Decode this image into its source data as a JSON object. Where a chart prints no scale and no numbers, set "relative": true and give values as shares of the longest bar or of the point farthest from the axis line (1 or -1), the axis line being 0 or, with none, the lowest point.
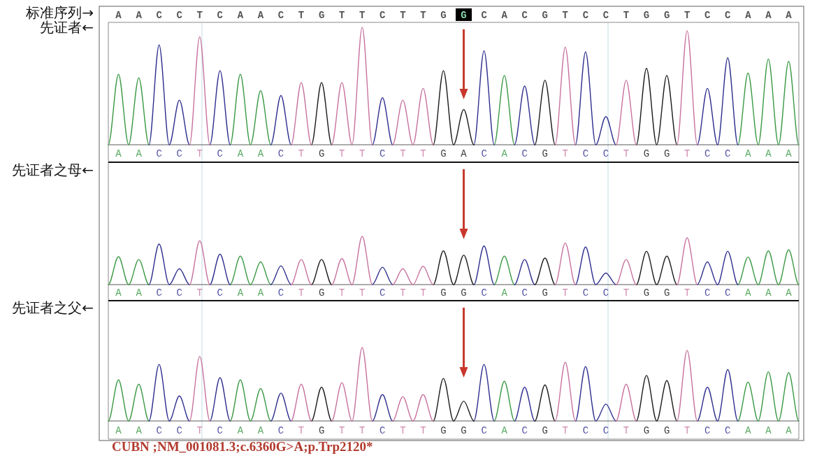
{
  "chart_data": [
    {
      "type": "other",
      "ylabel": "标准序列→",
      "categories": [
        "A",
        "A",
        "C",
        "C",
        "T",
        "C",
        "A",
        "A",
        "C",
        "T",
        "G",
        "T",
        "T",
        "C",
        "T",
        "T",
        "G",
        "G",
        "C",
        "A",
        "C",
        "G",
        "T",
        "C",
        "C",
        "T",
        "G",
        "G",
        "T",
        "C",
        "C",
        "A",
        "A",
        "A"
      ],
      "colors": [
        null,
        null,
        null,
        null,
        null,
        null,
        null,
        null,
        null,
        null,
        null,
        null,
        null,
        null,
        null,
        null,
        null,
        "#000000",
        null,
        null,
        null,
        null,
        null,
        null,
        null,
        null,
        null,
        null,
        null,
        null,
        null,
        null,
        null,
        null
      ]
    },
    {
      "type": "line",
      "ylabel": "先证者←",
      "relative": true,
      "categories": [
        null,
        "A",
        null,
        "A",
        null,
        "C",
        null,
        "C",
        null,
        "T",
        null,
        "C",
        null,
        "A",
        null,
        "A",
        null,
        "C",
        null,
        "T",
        null,
        "G",
        null,
        "T",
        null,
        "T",
        null,
        "C",
        null,
        "T",
        null,
        "T",
        null,
        "G",
        null,
        "A",
        null,
        "C",
        null,
        "A",
        null,
        "C",
        null,
        "G",
        null,
        "T",
        null,
        "C",
        null,
        "C",
        null,
        "T",
        null,
        "G",
        null,
        "G",
        null,
        "T",
        null,
        "C",
        null,
        "C",
        null,
        "A",
        null,
        "A",
        null,
        "A",
        null
      ],
      "series": [
        {
          "color": "#3c9a46",
          "values": [
            0,
            0.6,
            0,
            0.57,
            0,
            null,
            null,
            null,
            null,
            null,
            null,
            null,
            0,
            0.6,
            0,
            0.46,
            0,
            null,
            null,
            null,
            null,
            null,
            null,
            null,
            null,
            null,
            null,
            null,
            null,
            null,
            null,
            null,
            null,
            null,
            null,
            null,
            null,
            null,
            0,
            0.59,
            0,
            null,
            null,
            null,
            null,
            null,
            null,
            null,
            null,
            null,
            null,
            null,
            null,
            null,
            null,
            null,
            null,
            null,
            null,
            null,
            null,
            null,
            0,
            0.61,
            0,
            0.73,
            0,
            0.71,
            0
          ]
        },
        {
          "color": "#2f2f8f",
          "values": [
            null,
            null,
            null,
            null,
            0,
            0.85,
            0,
            0.38,
            0,
            null,
            0,
            0.63,
            0,
            null,
            null,
            null,
            0,
            0.42,
            0,
            null,
            null,
            null,
            null,
            null,
            null,
            null,
            0,
            0.4,
            0,
            null,
            null,
            null,
            null,
            null,
            null,
            null,
            0,
            0.8,
            0,
            null,
            0,
            0.5,
            0,
            null,
            null,
            null,
            0,
            0.79,
            0,
            0.24,
            0,
            null,
            null,
            null,
            null,
            null,
            null,
            null,
            0,
            0.48,
            0,
            0.74,
            0,
            null,
            null,
            null,
            null,
            null,
            null
          ]
        },
        {
          "color": "#1c1c1c",
          "values": [
            null,
            null,
            null,
            null,
            null,
            null,
            null,
            null,
            null,
            null,
            null,
            null,
            null,
            null,
            null,
            null,
            null,
            null,
            null,
            null,
            0,
            0.53,
            0,
            null,
            null,
            null,
            null,
            null,
            null,
            null,
            null,
            null,
            0,
            0.63,
            0,
            0.3,
            0,
            null,
            null,
            null,
            null,
            null,
            0,
            0.55,
            0,
            null,
            null,
            null,
            null,
            null,
            null,
            null,
            0,
            0.65,
            0,
            0.59,
            0,
            null,
            null,
            null,
            null,
            null,
            null,
            null,
            null,
            null,
            null,
            null,
            null
          ]
        },
        {
          "color": "#c8739f",
          "values": [
            null,
            null,
            null,
            null,
            null,
            null,
            null,
            null,
            0,
            0.92,
            0,
            null,
            null,
            null,
            null,
            null,
            null,
            null,
            0,
            0.53,
            0,
            null,
            0,
            0.53,
            0,
            1,
            0,
            null,
            0,
            0.38,
            0,
            0.48,
            0,
            null,
            null,
            null,
            null,
            null,
            null,
            null,
            null,
            null,
            null,
            null,
            0,
            0.83,
            0,
            null,
            null,
            null,
            0,
            0.55,
            0,
            null,
            null,
            null,
            0,
            0.97,
            0,
            null,
            null,
            null,
            null,
            null,
            null,
            null,
            null,
            null,
            null
          ]
        }
      ]
    },
    {
      "type": "line",
      "ylabel": "先证者之母←",
      "relative": true,
      "categories": [
        null,
        "A",
        null,
        "A",
        null,
        "C",
        null,
        "C",
        null,
        "T",
        null,
        "C",
        null,
        "A",
        null,
        "A",
        null,
        "C",
        null,
        "T",
        null,
        "G",
        null,
        "T",
        null,
        "T",
        null,
        "C",
        null,
        "T",
        null,
        "T",
        null,
        "G",
        null,
        "G",
        null,
        "C",
        null,
        "A",
        null,
        "C",
        null,
        "G",
        null,
        "T",
        null,
        "C",
        null,
        "C",
        null,
        "T",
        null,
        "G",
        null,
        "G",
        null,
        "T",
        null,
        "C",
        null,
        "C",
        null,
        "A",
        null,
        "A",
        null,
        "A",
        null
      ],
      "series": [
        {
          "color": "#3c9a46",
          "values": [
            0,
            0.58,
            0,
            0.52,
            0,
            null,
            null,
            null,
            null,
            null,
            null,
            null,
            0,
            0.59,
            0,
            0.47,
            0,
            null,
            null,
            null,
            null,
            null,
            null,
            null,
            null,
            null,
            null,
            null,
            null,
            null,
            null,
            null,
            null,
            null,
            null,
            null,
            null,
            null,
            0,
            0.59,
            0,
            null,
            null,
            null,
            null,
            null,
            null,
            null,
            null,
            null,
            null,
            null,
            null,
            null,
            null,
            null,
            null,
            null,
            null,
            null,
            null,
            null,
            0,
            0.57,
            0,
            0.7,
            0,
            0.72,
            0
          ]
        },
        {
          "color": "#2f2f8f",
          "values": [
            null,
            null,
            null,
            null,
            0,
            0.84,
            0,
            0.33,
            0,
            null,
            0,
            0.63,
            0,
            null,
            null,
            null,
            0,
            0.39,
            0,
            null,
            null,
            null,
            null,
            null,
            null,
            null,
            0,
            0.36,
            0,
            null,
            null,
            null,
            null,
            null,
            null,
            null,
            0,
            0.8,
            0,
            null,
            0,
            0.52,
            0,
            null,
            null,
            null,
            0,
            0.78,
            0,
            0.24,
            0,
            null,
            null,
            null,
            null,
            null,
            null,
            null,
            0,
            0.47,
            0,
            0.69,
            0,
            null,
            null,
            null,
            null,
            null,
            null
          ]
        },
        {
          "color": "#1c1c1c",
          "values": [
            null,
            null,
            null,
            null,
            null,
            null,
            null,
            null,
            null,
            null,
            null,
            null,
            null,
            null,
            null,
            null,
            null,
            null,
            null,
            null,
            0,
            0.52,
            0,
            null,
            null,
            null,
            null,
            null,
            null,
            null,
            null,
            null,
            0,
            0.7,
            0,
            0.61,
            0,
            null,
            null,
            null,
            null,
            null,
            0,
            0.55,
            0,
            null,
            null,
            null,
            null,
            null,
            null,
            null,
            0,
            0.69,
            0,
            0.59,
            0,
            null,
            null,
            null,
            null,
            null,
            null,
            null,
            null,
            null,
            null,
            null,
            null
          ]
        },
        {
          "color": "#c8739f",
          "values": [
            null,
            null,
            null,
            null,
            null,
            null,
            null,
            null,
            0,
            0.91,
            0,
            null,
            null,
            null,
            null,
            null,
            null,
            null,
            0,
            0.52,
            0,
            null,
            0,
            0.54,
            0,
            1,
            0,
            null,
            0,
            0.33,
            0,
            0.38,
            0,
            null,
            null,
            null,
            null,
            null,
            null,
            null,
            null,
            null,
            null,
            null,
            0,
            0.86,
            0,
            null,
            null,
            null,
            0,
            0.52,
            0,
            null,
            null,
            null,
            0,
            0.97,
            0,
            null,
            null,
            null,
            null,
            null,
            null,
            null,
            null,
            null,
            null
          ]
        }
      ]
    },
    {
      "type": "line",
      "ylabel": "先证者之父←",
      "relative": true,
      "categories": [
        null,
        "A",
        null,
        "A",
        null,
        "C",
        null,
        "C",
        null,
        "T",
        null,
        "C",
        null,
        "A",
        null,
        "A",
        null,
        "C",
        null,
        "T",
        null,
        "G",
        null,
        "T",
        null,
        "T",
        null,
        "C",
        null,
        "T",
        null,
        "T",
        null,
        "G",
        null,
        "G",
        null,
        "C",
        null,
        "A",
        null,
        "C",
        null,
        "G",
        null,
        "T",
        null,
        "C",
        null,
        "C",
        null,
        "T",
        null,
        "G",
        null,
        "G",
        null,
        "T",
        null,
        "C",
        null,
        "C",
        null,
        "A",
        null,
        "A",
        null,
        "A",
        null
      ],
      "annotations": [
        "CUBN ;NM_001081.3;c.6360G>A;p.Trp2120*"
      ],
      "series": [
        {
          "color": "#3c9a46",
          "values": [
            0,
            0.56,
            0,
            0.5,
            0,
            null,
            null,
            null,
            null,
            null,
            null,
            null,
            0,
            0.56,
            0,
            0.44,
            0,
            null,
            null,
            null,
            null,
            null,
            null,
            null,
            null,
            null,
            null,
            null,
            null,
            null,
            null,
            null,
            null,
            null,
            null,
            null,
            null,
            null,
            0,
            0.54,
            0,
            null,
            null,
            null,
            null,
            null,
            null,
            null,
            null,
            null,
            null,
            null,
            null,
            null,
            null,
            null,
            null,
            null,
            null,
            null,
            null,
            null,
            0,
            0.53,
            0,
            0.67,
            0,
            0.66,
            0
          ]
        },
        {
          "color": "#2f2f8f",
          "values": [
            null,
            null,
            null,
            null,
            0,
            0.77,
            0,
            0.34,
            0,
            null,
            0,
            0.59,
            0,
            null,
            null,
            null,
            0,
            0.38,
            0,
            null,
            null,
            null,
            null,
            null,
            null,
            null,
            0,
            0.36,
            0,
            null,
            null,
            null,
            null,
            null,
            null,
            null,
            0,
            0.77,
            0,
            null,
            0,
            0.46,
            0,
            null,
            null,
            null,
            0,
            0.74,
            0,
            0.23,
            0,
            null,
            null,
            null,
            null,
            null,
            null,
            null,
            0,
            0.46,
            0,
            0.7,
            0,
            null,
            null,
            null,
            null,
            null,
            null
          ]
        },
        {
          "color": "#1c1c1c",
          "values": [
            null,
            null,
            null,
            null,
            null,
            null,
            null,
            null,
            null,
            null,
            null,
            null,
            null,
            null,
            null,
            null,
            null,
            null,
            null,
            null,
            0,
            0.46,
            0,
            null,
            null,
            null,
            null,
            null,
            null,
            null,
            null,
            null,
            0,
            0.58,
            0,
            0.27,
            0,
            null,
            null,
            null,
            null,
            null,
            0,
            0.49,
            0,
            null,
            null,
            null,
            null,
            null,
            null,
            null,
            0,
            0.62,
            0,
            0.55,
            0,
            null,
            null,
            null,
            null,
            null,
            null,
            null,
            null,
            null,
            null,
            null,
            null
          ]
        },
        {
          "color": "#c8739f",
          "values": [
            null,
            null,
            null,
            null,
            null,
            null,
            null,
            null,
            0,
            0.88,
            0,
            null,
            null,
            null,
            null,
            null,
            null,
            null,
            0,
            0.5,
            0,
            null,
            0,
            0.52,
            0,
            1,
            0,
            null,
            0,
            0.33,
            0,
            0.36,
            0,
            null,
            null,
            null,
            null,
            null,
            null,
            null,
            null,
            null,
            null,
            null,
            0,
            0.8,
            0,
            null,
            null,
            null,
            0,
            0.5,
            0,
            null,
            null,
            null,
            0,
            0.96,
            0,
            null,
            null,
            null,
            null,
            null,
            null,
            null,
            null,
            null,
            null
          ]
        }
      ]
    }
  ]
}
